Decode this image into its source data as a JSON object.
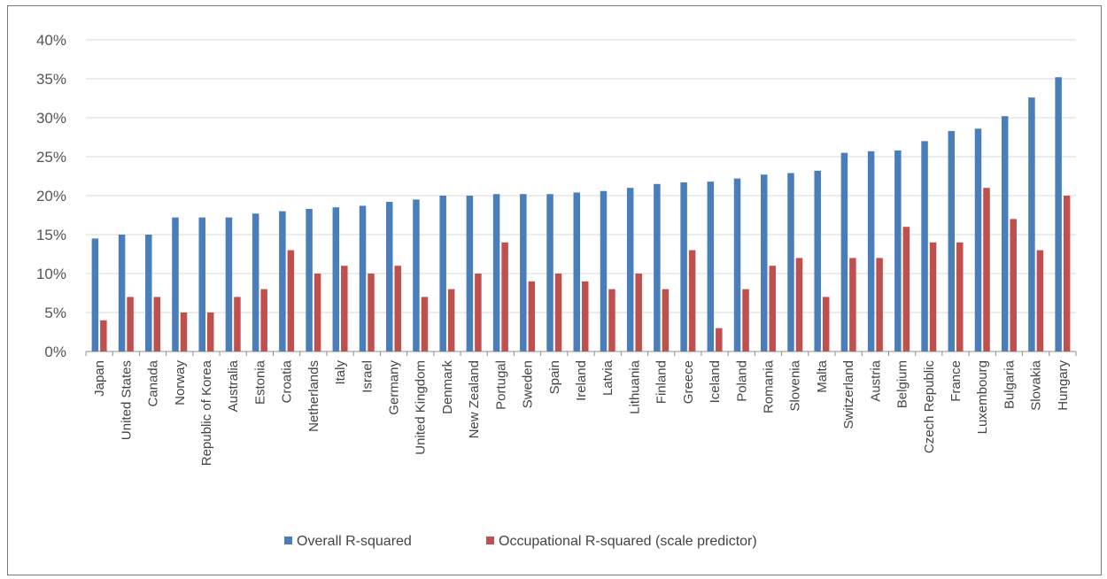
{
  "chart_data": {
    "type": "bar",
    "title": "",
    "xlabel": "",
    "ylabel": "",
    "ylim": [
      0,
      40
    ],
    "y_ticks": [
      "0%",
      "5%",
      "10%",
      "15%",
      "20%",
      "25%",
      "30%",
      "35%",
      "40%"
    ],
    "grid": "horizontal",
    "legend_position": "bottom",
    "categories": [
      "Japan",
      "United States",
      "Canada",
      "Norway",
      "Republic of Korea",
      "Australia",
      "Estonia",
      "Croatia",
      "Netherlands",
      "Italy",
      "Israel",
      "Germany",
      "United Kingdom",
      "Denmark",
      "New Zealand",
      "Portugal",
      "Sweden",
      "Spain",
      "Ireland",
      "Latvia",
      "Lithuania",
      "Finland",
      "Greece",
      "Iceland",
      "Poland",
      "Romania",
      "Slovenia",
      "Malta",
      "Switzerland",
      "Austria",
      "Belgium",
      "Czech Republic",
      "France",
      "Luxembourg",
      "Bulgaria",
      "Slovakia",
      "Hungary"
    ],
    "series": [
      {
        "name": "Overall R-squared",
        "color": "#4a7ebb",
        "values": [
          14.5,
          15,
          15,
          17.2,
          17.2,
          17.2,
          17.7,
          18,
          18.3,
          18.5,
          18.7,
          19.2,
          19.5,
          20,
          20,
          20.2,
          20.2,
          20.2,
          20.4,
          20.6,
          21,
          21.5,
          21.7,
          21.8,
          22.2,
          22.7,
          22.9,
          23.2,
          25.5,
          25.7,
          25.8,
          27,
          28.3,
          28.6,
          30.2,
          32.6,
          35.2
        ]
      },
      {
        "name": "Occupational R-squared (scale predictor)",
        "color": "#c0504d",
        "values": [
          4,
          7,
          7,
          5,
          5,
          7,
          8,
          13,
          10,
          11,
          10,
          11,
          7,
          8,
          10,
          14,
          9,
          10,
          9,
          8,
          10,
          8,
          13,
          3,
          8,
          11,
          12,
          7,
          12,
          12,
          16,
          14,
          14,
          21,
          17,
          13,
          20
        ]
      }
    ]
  }
}
